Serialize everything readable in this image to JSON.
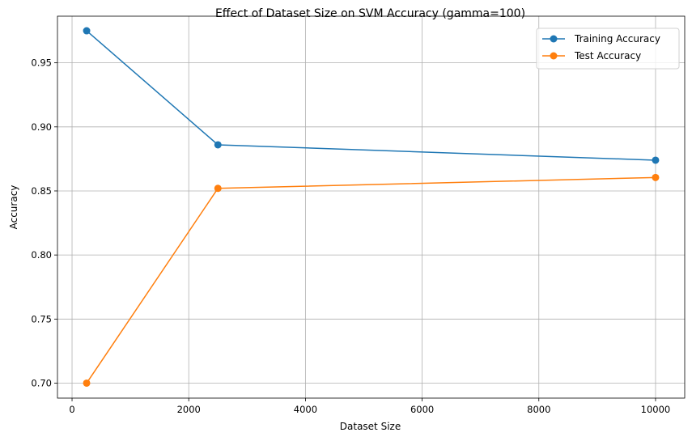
{
  "chart_data": {
    "type": "line",
    "title": "Effect of Dataset Size on SVM Accuracy (gamma=100)",
    "xlabel": "Dataset Size",
    "ylabel": "Accuracy",
    "xlim": [
      -250,
      10500
    ],
    "ylim": [
      0.6883,
      0.9864
    ],
    "xticks": [
      0,
      2000,
      4000,
      6000,
      8000,
      10000
    ],
    "xtick_labels": [
      "0",
      "2000",
      "4000",
      "6000",
      "8000",
      "10000"
    ],
    "yticks": [
      0.7,
      0.75,
      0.8,
      0.85,
      0.9,
      0.95
    ],
    "ytick_labels": [
      "0.70",
      "0.75",
      "0.80",
      "0.85",
      "0.90",
      "0.95"
    ],
    "grid": true,
    "legend_position": "top-right",
    "x": [
      250,
      2500,
      10000
    ],
    "series": [
      {
        "name": "Training Accuracy",
        "color": "#1f77b4",
        "marker": "circle",
        "values": [
          0.975,
          0.886,
          0.874
        ]
      },
      {
        "name": "Test Accuracy",
        "color": "#ff7f0e",
        "marker": "circle",
        "values": [
          0.7,
          0.852,
          0.8605
        ]
      }
    ]
  }
}
